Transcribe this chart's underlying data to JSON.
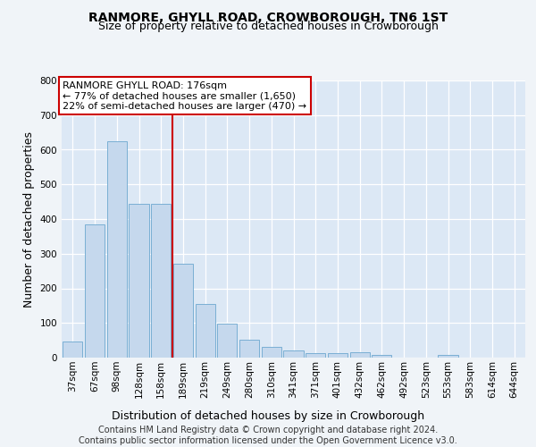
{
  "title": "RANMORE, GHYLL ROAD, CROWBOROUGH, TN6 1ST",
  "subtitle": "Size of property relative to detached houses in Crowborough",
  "xlabel": "Distribution of detached houses by size in Crowborough",
  "ylabel": "Number of detached properties",
  "categories": [
    "37sqm",
    "67sqm",
    "98sqm",
    "128sqm",
    "158sqm",
    "189sqm",
    "219sqm",
    "249sqm",
    "280sqm",
    "310sqm",
    "341sqm",
    "371sqm",
    "401sqm",
    "432sqm",
    "462sqm",
    "492sqm",
    "523sqm",
    "553sqm",
    "583sqm",
    "614sqm",
    "644sqm"
  ],
  "values": [
    47,
    385,
    625,
    445,
    445,
    270,
    155,
    98,
    52,
    30,
    20,
    12,
    12,
    15,
    8,
    0,
    0,
    8,
    0,
    0,
    0
  ],
  "bar_color": "#c5d8ed",
  "bar_edge_color": "#7aafd4",
  "vline_color": "#cc0000",
  "annotation_text": "RANMORE GHYLL ROAD: 176sqm\n← 77% of detached houses are smaller (1,650)\n22% of semi-detached houses are larger (470) →",
  "annotation_box_color": "#ffffff",
  "annotation_box_edge_color": "#cc0000",
  "ylim": [
    0,
    800
  ],
  "yticks": [
    0,
    100,
    200,
    300,
    400,
    500,
    600,
    700,
    800
  ],
  "plot_bg_color": "#dce8f5",
  "fig_bg_color": "#f0f4f8",
  "footer": "Contains HM Land Registry data © Crown copyright and database right 2024.\nContains public sector information licensed under the Open Government Licence v3.0.",
  "title_fontsize": 10,
  "subtitle_fontsize": 9,
  "ylabel_fontsize": 9,
  "xlabel_fontsize": 9,
  "tick_fontsize": 7.5,
  "annotation_fontsize": 8,
  "footer_fontsize": 7
}
